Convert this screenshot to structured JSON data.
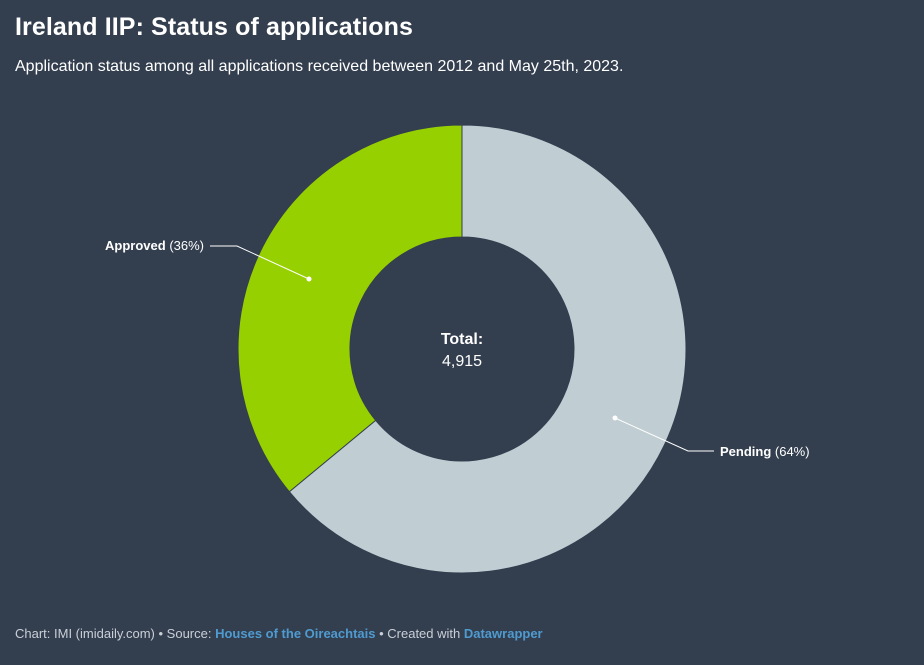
{
  "header": {
    "title": "Ireland IIP: Status of applications",
    "subtitle": "Application status among all applications received between 2012 and May 25th, 2023."
  },
  "center": {
    "label": "Total:",
    "value": "4,915"
  },
  "footer": {
    "chart_credit": "Chart: IMI (imidaily.com)",
    "separator": " • ",
    "source_label": "Source: ",
    "source_link": "Houses of the Oireachtais",
    "created_with_label": "Created with ",
    "created_with_link": "Datawrapper"
  },
  "colors": {
    "background": "#333e4f",
    "approved": "#96d000",
    "pending": "#c0cdd2",
    "link": "#4f9bd0"
  },
  "chart_data": {
    "type": "pie",
    "style": "donut",
    "total": 4915,
    "slices": [
      {
        "label": "Approved",
        "pct_label": "(36%)",
        "value": 36,
        "color": "#96d000"
      },
      {
        "label": "Pending",
        "pct_label": "(64%)",
        "value": 64,
        "color": "#c0cdd2"
      }
    ]
  }
}
